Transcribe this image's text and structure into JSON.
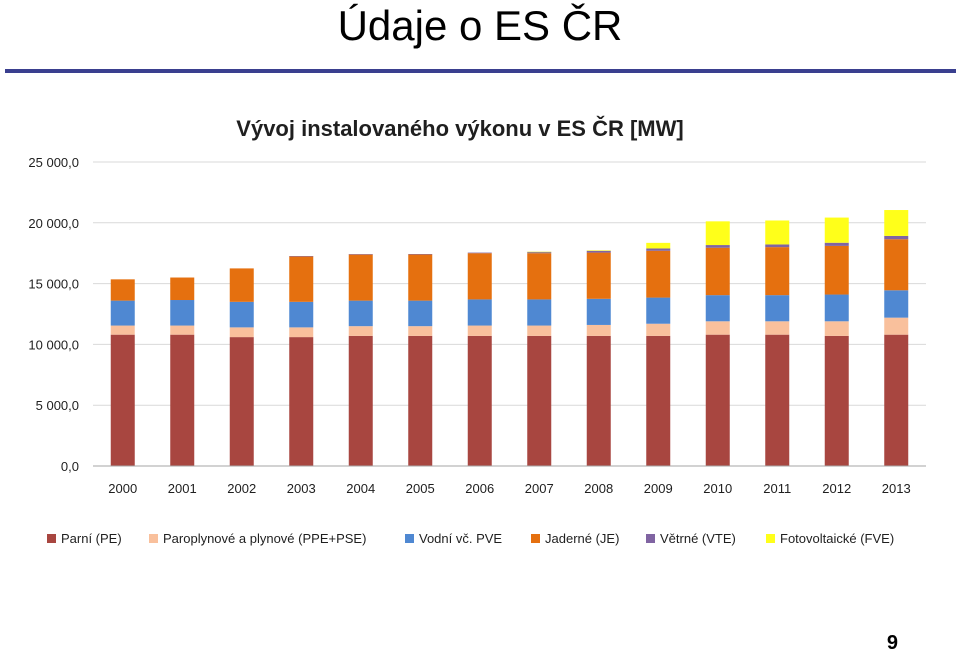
{
  "slide": {
    "title": "Údaje o ES ČR",
    "page_number": "9"
  },
  "chart_data": {
    "type": "bar",
    "stacked": true,
    "title": "Vývoj instalovaného výkonu v ES ČR [MW]",
    "xlabel": "",
    "ylabel": "",
    "ylim": [
      0,
      25000
    ],
    "yticks": [
      0,
      5000,
      10000,
      15000,
      20000,
      25000
    ],
    "ytick_labels": [
      "0,0",
      "5 000,0",
      "10 000,0",
      "15 000,0",
      "20 000,0",
      "25 000,0"
    ],
    "grid": true,
    "legend_position": "bottom",
    "categories": [
      "2000",
      "2001",
      "2002",
      "2003",
      "2004",
      "2005",
      "2006",
      "2007",
      "2008",
      "2009",
      "2010",
      "2011",
      "2012",
      "2013"
    ],
    "series": [
      {
        "name": "Parní (PE)",
        "color": "#a84640",
        "values": [
          10800,
          10800,
          10600,
          10600,
          10700,
          10700,
          10700,
          10700,
          10700,
          10700,
          10800,
          10800,
          10700,
          10800
        ]
      },
      {
        "name": "Paroplynové a plynové (PPE+PSE)",
        "color": "#f9c09c",
        "values": [
          750,
          750,
          800,
          800,
          800,
          800,
          850,
          850,
          900,
          1000,
          1100,
          1100,
          1200,
          1400
        ]
      },
      {
        "name": "Vodní vč. PVE",
        "color": "#4f88d2",
        "values": [
          2050,
          2100,
          2100,
          2100,
          2100,
          2100,
          2150,
          2150,
          2150,
          2150,
          2150,
          2150,
          2200,
          2250
        ]
      },
      {
        "name": "Jaderné (JE)",
        "color": "#e5700f",
        "values": [
          1750,
          1850,
          2750,
          3750,
          3800,
          3800,
          3800,
          3800,
          3800,
          3850,
          3900,
          3950,
          4000,
          4200
        ]
      },
      {
        "name": "Větrné (VTE)",
        "color": "#8064a2",
        "values": [
          0,
          0,
          0,
          10,
          20,
          30,
          50,
          110,
          150,
          190,
          220,
          220,
          260,
          270
        ]
      },
      {
        "name": "Fotovoltaické (FVE)",
        "color": "#ffff1a",
        "values": [
          0,
          0,
          0,
          0,
          0,
          0,
          0,
          10,
          40,
          460,
          1950,
          1970,
          2070,
          2130
        ]
      }
    ]
  }
}
